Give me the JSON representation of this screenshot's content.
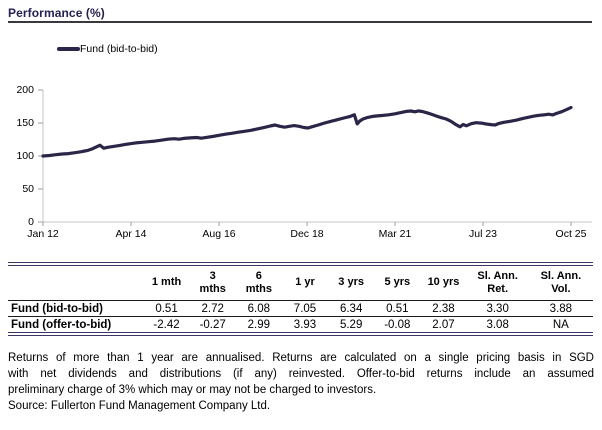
{
  "title": "Performance (%)",
  "colors": {
    "accent_line": "#2d2547",
    "title_text": "#262153",
    "table_border": "#3c3666",
    "axis": "#c4c4c4",
    "tick": "#9f9f9f"
  },
  "chart_data": {
    "type": "line",
    "title": "Performance (%)",
    "legend": "Fund (bid-to-bid)",
    "legend_position": "top-left",
    "xlabel": "",
    "ylabel": "",
    "ylim": [
      0,
      200
    ],
    "y_ticks": [
      0,
      50,
      100,
      150,
      200
    ],
    "x_tick_labels": [
      "Jan 12",
      "Apr 14",
      "Aug 16",
      "Dec 18",
      "Mar 21",
      "Jul 23",
      "Oct 25"
    ],
    "x_unit": "months since Jan 2012",
    "x_range": [
      0,
      165
    ],
    "grid": false,
    "series": [
      {
        "name": "Fund (bid-to-bid)",
        "points": [
          [
            0,
            100
          ],
          [
            2,
            100.7
          ],
          [
            4,
            102
          ],
          [
            6,
            103
          ],
          [
            8,
            103.6
          ],
          [
            10,
            105
          ],
          [
            12,
            106.5
          ],
          [
            13,
            107.5
          ],
          [
            14,
            108.5
          ],
          [
            15.5,
            111
          ],
          [
            17,
            114.5
          ],
          [
            17.8,
            116.3
          ],
          [
            19,
            111.8
          ],
          [
            20,
            113
          ],
          [
            22,
            114.5
          ],
          [
            24,
            116
          ],
          [
            25.5,
            117.2
          ],
          [
            27,
            118.5
          ],
          [
            29,
            119.8
          ],
          [
            31,
            120.7
          ],
          [
            33,
            121.6
          ],
          [
            35,
            122.6
          ],
          [
            37,
            124
          ],
          [
            39,
            125.4
          ],
          [
            41,
            126.2
          ],
          [
            42.5,
            125.4
          ],
          [
            44,
            126.6
          ],
          [
            46,
            127.4
          ],
          [
            48,
            128
          ],
          [
            49.5,
            127
          ],
          [
            51,
            128.2
          ],
          [
            53,
            129.6
          ],
          [
            55,
            131.4
          ],
          [
            57,
            133
          ],
          [
            59,
            134.4
          ],
          [
            61,
            136
          ],
          [
            63,
            137.4
          ],
          [
            65,
            139
          ],
          [
            67,
            141
          ],
          [
            69,
            143
          ],
          [
            71,
            145.4
          ],
          [
            72.5,
            147
          ],
          [
            74,
            145
          ],
          [
            75.5,
            143.6
          ],
          [
            77,
            145
          ],
          [
            78.5,
            146
          ],
          [
            80,
            145
          ],
          [
            81.5,
            143.2
          ],
          [
            82.8,
            142.4
          ],
          [
            84,
            144.2
          ],
          [
            86,
            147
          ],
          [
            88,
            150
          ],
          [
            90,
            152.5
          ],
          [
            92,
            155
          ],
          [
            94,
            157.5
          ],
          [
            96,
            160
          ],
          [
            97.3,
            162.4
          ],
          [
            98.2,
            148.6
          ],
          [
            99,
            153
          ],
          [
            100,
            156
          ],
          [
            101.5,
            158.5
          ],
          [
            103,
            160
          ],
          [
            104.5,
            160.8
          ],
          [
            106,
            161.3
          ],
          [
            108,
            162.4
          ],
          [
            110,
            164
          ],
          [
            112,
            166
          ],
          [
            113.5,
            167.5
          ],
          [
            115,
            168.2
          ],
          [
            116.2,
            167
          ],
          [
            117.3,
            168.4
          ],
          [
            118.5,
            167.4
          ],
          [
            120,
            165.5
          ],
          [
            121.5,
            163
          ],
          [
            123,
            160.5
          ],
          [
            124.5,
            158
          ],
          [
            126,
            156
          ],
          [
            127.5,
            152.5
          ],
          [
            129,
            147.5
          ],
          [
            130.3,
            144.3
          ],
          [
            131.3,
            147.8
          ],
          [
            132.3,
            145.8
          ],
          [
            133.8,
            149
          ],
          [
            135.3,
            150.4
          ],
          [
            137,
            149.8
          ],
          [
            138.5,
            148.5
          ],
          [
            140,
            147.6
          ],
          [
            141.3,
            146.9
          ],
          [
            142.5,
            149.4
          ],
          [
            144,
            151
          ],
          [
            146,
            152.5
          ],
          [
            148,
            154.4
          ],
          [
            150,
            157
          ],
          [
            152,
            159
          ],
          [
            153.5,
            160.4
          ],
          [
            155,
            161.7
          ],
          [
            156.5,
            162.3
          ],
          [
            158,
            163.4
          ],
          [
            159.3,
            162.3
          ],
          [
            160.5,
            164.5
          ],
          [
            162,
            167
          ],
          [
            163.2,
            169.4
          ],
          [
            164.3,
            171.8
          ],
          [
            165,
            173.5
          ]
        ]
      }
    ]
  },
  "table": {
    "headers": [
      "",
      "1 mth",
      "3\nmths",
      "6\nmths",
      "1 yr",
      "3 yrs",
      "5 yrs",
      "10 yrs",
      "Sl. Ann.\nRet.",
      "Sl. Ann.\nVol."
    ],
    "rows": [
      {
        "label": "Fund (bid-to-bid)",
        "values": [
          "0.51",
          "2.72",
          "6.08",
          "7.05",
          "6.34",
          "0.51",
          "2.38",
          "3.30",
          "3.88"
        ]
      },
      {
        "label": "Fund (offer-to-bid)",
        "values": [
          "-2.42",
          "-0.27",
          "2.99",
          "3.93",
          "5.29",
          "-0.08",
          "2.07",
          "3.08",
          "NA"
        ]
      }
    ]
  },
  "footnote": {
    "lines": [
      "Returns of more than 1 year are annualised. Returns are calculated on a single pricing basis in SGD",
      "with net dividends and distributions (if any) reinvested. Offer-to-bid returns include an assumed",
      "preliminary charge of 3% which may or may not be charged to investors."
    ],
    "source": "Source: Fullerton Fund Management Company Ltd."
  }
}
